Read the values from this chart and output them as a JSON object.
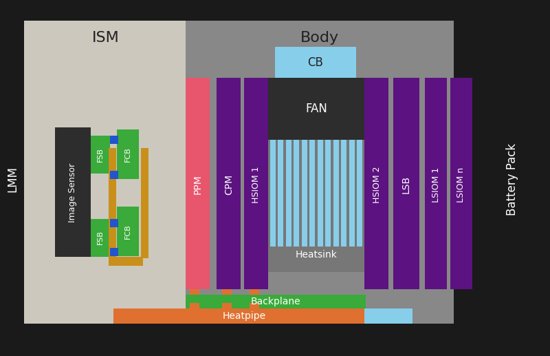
{
  "bg": "#1a1a1a",
  "ism_bg": "#cdc8be",
  "body_bg": "#888888",
  "colors": {
    "image_sensor": "#2d2d2d",
    "fsb": "#3aaa3a",
    "fcb": "#3aaa3a",
    "blue_conn": "#2255cc",
    "ppm": "#e8566e",
    "purple": "#5c1280",
    "heatsink_gray": "#777777",
    "fins": "#87ceeb",
    "fan_bg": "#2d2d2d",
    "cb": "#87ceeb",
    "backplane": "#3aaa3a",
    "heatpipe": "#e07030",
    "hp_conn": "#c8901a",
    "orange_tab": "#e07030"
  },
  "labels": {
    "ism": "ISM",
    "body": "Body",
    "lmm": "LMM",
    "battery": "Battery Pack",
    "image_sensor": "Image Sensor",
    "fsb": "FSB",
    "fcb": "FCB",
    "ppm": "PPM",
    "cpm": "CPM",
    "hsiom1": "HSIOM 1",
    "hsiom2": "HSIOM 2",
    "lsb": "LSB",
    "lsiom1": "LSIOM 1",
    "lsiomn": "LSIOM n",
    "heatsink": "Heatsink",
    "fan": "FAN",
    "cb": "CB",
    "backplane": "Backplane",
    "heatpipe": "Heatpipe"
  }
}
